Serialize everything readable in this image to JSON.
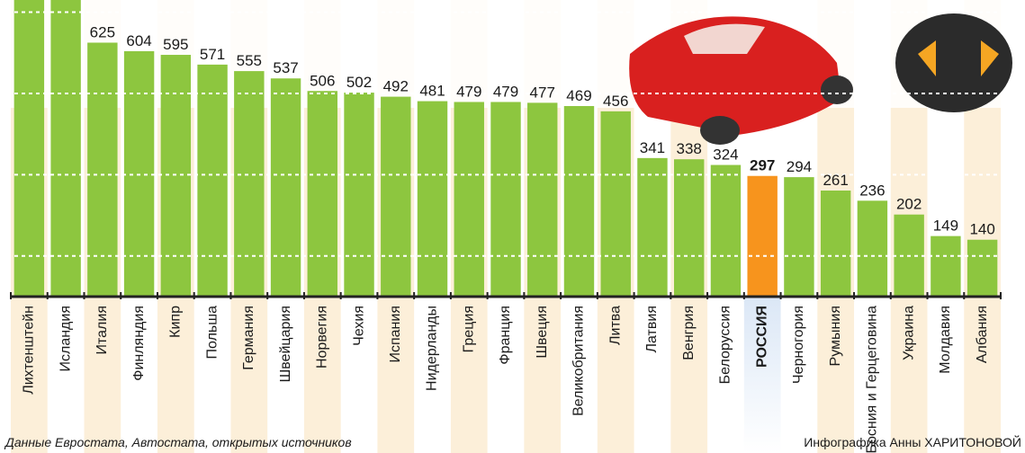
{
  "chart_data": {
    "type": "bar",
    "categories": [
      "Лихтенштейн",
      "Исландия",
      "Италия",
      "Финляндия",
      "Кипр",
      "Польша",
      "Германия",
      "Швейцария",
      "Норвегия",
      "Чехия",
      "Испания",
      "Нидерланды",
      "Греция",
      "Франция",
      "Швеция",
      "Великобритания",
      "Литва",
      "Латвия",
      "Венгрия",
      "Белоруссия",
      "РОССИЯ",
      "Черногория",
      "Румыния",
      "Босния и Герцеговина",
      "Украина",
      "Молдавия",
      "Албания"
    ],
    "values": [
      750,
      745,
      625,
      604,
      595,
      571,
      555,
      537,
      506,
      502,
      492,
      481,
      479,
      479,
      477,
      469,
      456,
      341,
      338,
      324,
      297,
      294,
      261,
      236,
      202,
      149,
      140
    ],
    "colors": [
      "#8dc63f",
      "#8dc63f",
      "#8dc63f",
      "#8dc63f",
      "#8dc63f",
      "#8dc63f",
      "#8dc63f",
      "#8dc63f",
      "#8dc63f",
      "#8dc63f",
      "#8dc63f",
      "#8dc63f",
      "#8dc63f",
      "#8dc63f",
      "#8dc63f",
      "#8dc63f",
      "#8dc63f",
      "#8dc63f",
      "#8dc63f",
      "#8dc63f",
      "#f7941d",
      "#8dc63f",
      "#8dc63f",
      "#8dc63f",
      "#8dc63f",
      "#8dc63f",
      "#8dc63f"
    ],
    "ylim": [
      0,
      730
    ],
    "yticks": [
      100,
      300,
      500,
      700
    ],
    "grid": true,
    "source": "Данные Евростата, Автостата, открытых источников",
    "credit": "Инфографика Анны ХАРИТОНОВОЙ"
  }
}
